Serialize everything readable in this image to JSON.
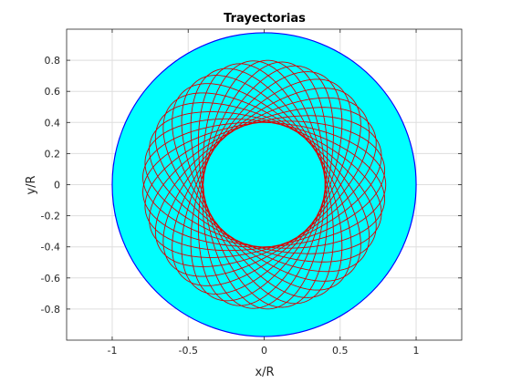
{
  "chart_data": {
    "type": "line",
    "title": "Trayectorias",
    "xlabel": "x/R",
    "ylabel": "y/R",
    "xlim": [
      -1.3,
      1.3
    ],
    "ylim": [
      -1.0,
      1.0
    ],
    "grid": true,
    "legend": "none",
    "x_ticks": [
      -1,
      -0.5,
      0,
      0.5,
      1
    ],
    "x_tick_labels": [
      "-1",
      "-0.5",
      "0",
      "0.5",
      "1"
    ],
    "y_ticks": [
      0.8,
      0.6,
      0.4,
      0.2,
      0,
      -0.2,
      -0.4,
      -0.6,
      -0.8
    ],
    "y_tick_labels": [
      "0.8",
      "0.6",
      "0.4",
      "0.2",
      "0",
      "-0.2",
      "-0.4",
      "-0.6",
      "-0.8"
    ],
    "disk": {
      "radius": 1.0
    },
    "trajectory": {
      "r_min": 0.4,
      "r_max": 0.8
    },
    "colors": {
      "disk_fill": "#00ffff",
      "disk_edge": "#0000ff",
      "trajectory": "#d90000",
      "grid": "#dedede",
      "axes": "#262626"
    }
  }
}
